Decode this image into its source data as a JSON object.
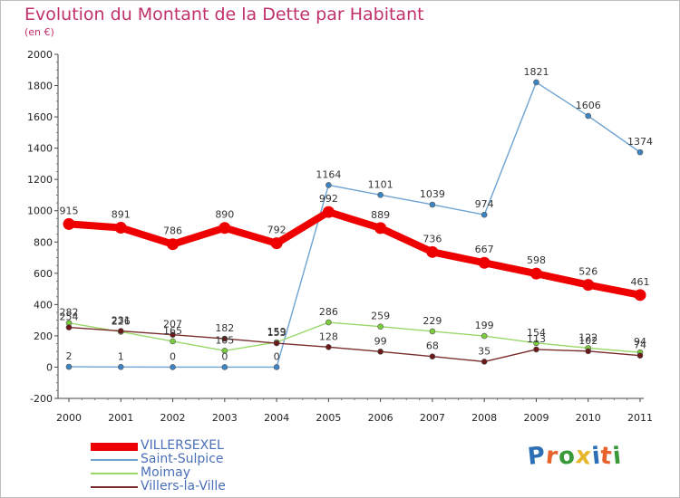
{
  "header": {
    "title": "Evolution du Montant de la Dette par Habitant",
    "subtitle": "(en €)"
  },
  "brand": {
    "logo_text": "Proxiti",
    "logo_colors": [
      "#2c6fb5",
      "#e8632b",
      "#3a9a3a",
      "#e8b62b",
      "#2c6fb5",
      "#e8632b",
      "#3a9a3a"
    ]
  },
  "chart_data": {
    "type": "line",
    "title": "Evolution du Montant de la Dette par Habitant",
    "subtitle": "(en €)",
    "xlabel": "",
    "ylabel": "",
    "x": [
      "2000",
      "2001",
      "2002",
      "2003",
      "2004",
      "2005",
      "2006",
      "2007",
      "2008",
      "2009",
      "2010",
      "2011"
    ],
    "ylim": [
      -200,
      2000
    ],
    "yticks": [
      "-200",
      "0",
      "200",
      "400",
      "600",
      "800",
      "1000",
      "1200",
      "1400",
      "1600",
      "1800",
      "2000"
    ],
    "grid": false,
    "legend_position": "bottom-left",
    "series": [
      {
        "name": "VILLERSEXEL",
        "values": [
          915,
          891,
          786,
          890,
          792,
          992,
          889,
          736,
          667,
          598,
          526,
          461
        ],
        "color": "#ee0000",
        "marker_color": "#ee0000",
        "emphasis": "thick"
      },
      {
        "name": "Saint-Sulpice",
        "values": [
          2,
          1,
          0,
          0,
          0,
          1164,
          1101,
          1039,
          974,
          1821,
          1606,
          1374
        ],
        "color": "#6ea3d2",
        "marker_color": "#3d84c4"
      },
      {
        "name": "Moimay",
        "values": [
          282,
          226,
          165,
          105,
          159,
          286,
          259,
          229,
          199,
          154,
          122,
          94
        ],
        "color": "#9ad86a",
        "marker_color": "#7ccd3e"
      },
      {
        "name": "Villers-la-Ville",
        "values": [
          254,
          231,
          207,
          182,
          153,
          128,
          99,
          68,
          35,
          113,
          102,
          74
        ],
        "color": "#7a2c2c",
        "marker_color": "#6a1818"
      }
    ]
  }
}
